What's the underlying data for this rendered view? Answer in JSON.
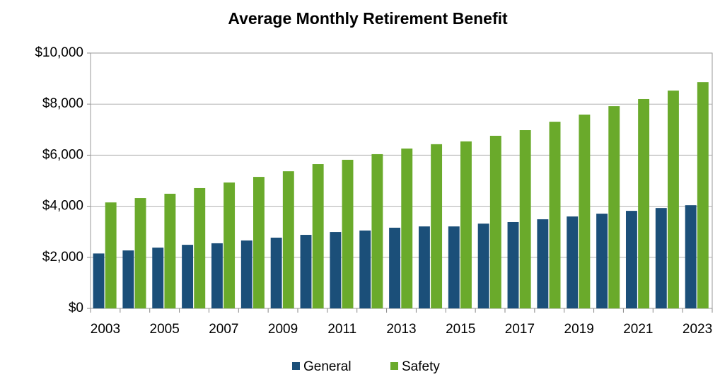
{
  "chart_data": {
    "type": "bar",
    "title": "Average Monthly Retirement Benefit",
    "categories": [
      "2003",
      null,
      "2005",
      null,
      "2007",
      null,
      "2009",
      null,
      "2011",
      null,
      "2013",
      null,
      "2015",
      null,
      "2017",
      null,
      "2019",
      null,
      "2021",
      null,
      "2023"
    ],
    "series": [
      {
        "name": "General",
        "color": "#1b4f79",
        "values": [
          2150,
          2270,
          2380,
          2490,
          2550,
          2660,
          2770,
          2880,
          2990,
          3050,
          3160,
          3210,
          3210,
          3320,
          3380,
          3490,
          3600,
          3710,
          3820,
          3930,
          4040
        ]
      },
      {
        "name": "Safety",
        "color": "#6aaa2b",
        "values": [
          4150,
          4320,
          4490,
          4710,
          4930,
          5150,
          5370,
          5650,
          5820,
          6040,
          6260,
          6430,
          6540,
          6760,
          6980,
          7310,
          7590,
          7920,
          8200,
          8530,
          8860
        ]
      }
    ],
    "ylim": [
      0,
      10000
    ],
    "yticks": [
      {
        "value": 0,
        "label": "$0"
      },
      {
        "value": 2000,
        "label": "$2,000"
      },
      {
        "value": 4000,
        "label": "$4,000"
      },
      {
        "value": 6000,
        "label": "$6,000"
      },
      {
        "value": 8000,
        "label": "$8,000"
      },
      {
        "value": 10000,
        "label": "$10,000"
      }
    ],
    "grid": true,
    "legend": "bottom"
  }
}
